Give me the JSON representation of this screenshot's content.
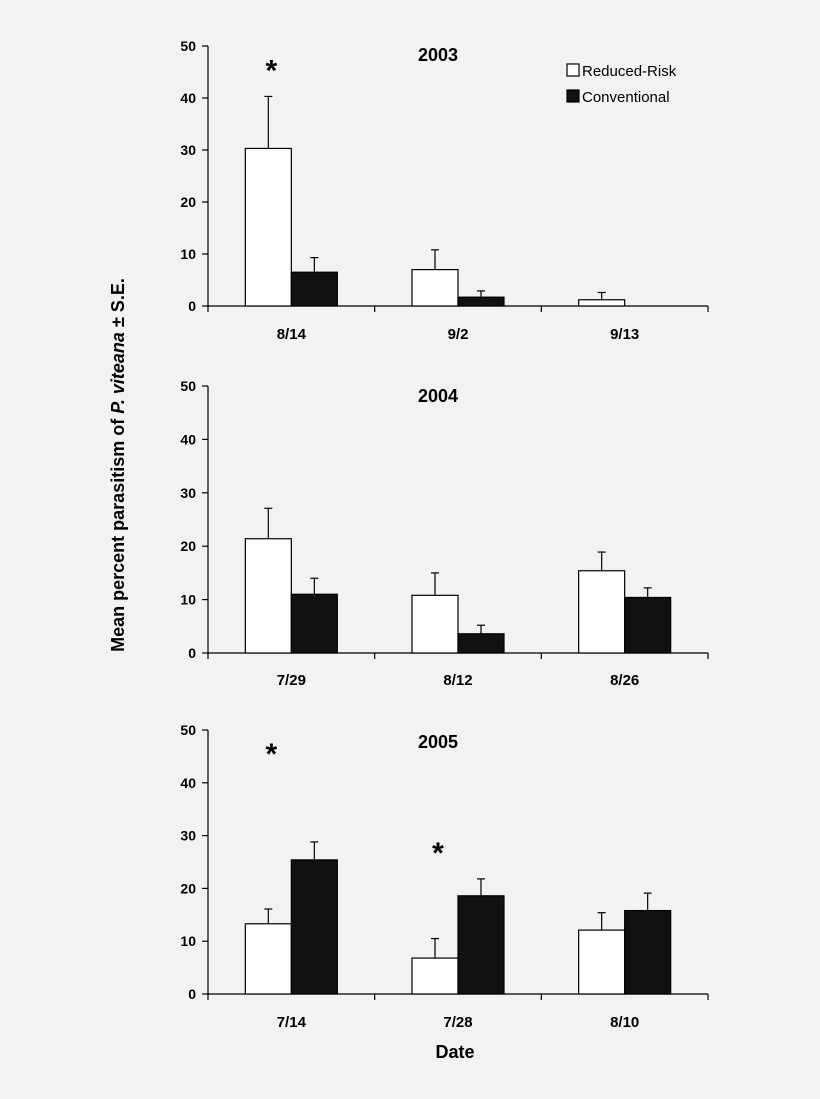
{
  "figure": {
    "ylabel_prefix": "Mean percent parasitism of ",
    "ylabel_italic": "P. viteana",
    "ylabel_suffix": " ± S.E.",
    "xlabel": "Date",
    "legend": [
      {
        "label": "Reduced-Risk",
        "color": "#ffffff"
      },
      {
        "label": "Conventional",
        "color": "#111111"
      }
    ],
    "colors": {
      "reduced_risk": "#ffffff",
      "conventional": "#111111",
      "background": "#f2f2f2"
    }
  },
  "chart_data": [
    {
      "type": "bar",
      "title": "2003",
      "categories": [
        "8/14",
        "9/2",
        "9/13"
      ],
      "ylim": [
        0,
        50
      ],
      "yticks": [
        0,
        10,
        20,
        30,
        40,
        50
      ],
      "series": [
        {
          "name": "Reduced-Risk",
          "values": [
            30.3,
            7.0,
            1.2
          ],
          "errors": [
            10.0,
            3.8,
            1.4
          ]
        },
        {
          "name": "Conventional",
          "values": [
            6.5,
            1.7,
            0
          ],
          "errors": [
            2.8,
            1.2,
            0
          ]
        }
      ],
      "significance": [
        {
          "category": "8/14",
          "label": "*"
        }
      ]
    },
    {
      "type": "bar",
      "title": "2004",
      "categories": [
        "7/29",
        "8/12",
        "8/26"
      ],
      "ylim": [
        0,
        50
      ],
      "yticks": [
        0,
        10,
        20,
        30,
        40,
        50
      ],
      "series": [
        {
          "name": "Reduced-Risk",
          "values": [
            21.4,
            10.8,
            15.4
          ],
          "errors": [
            5.7,
            4.2,
            3.5
          ]
        },
        {
          "name": "Conventional",
          "values": [
            11.0,
            3.6,
            10.4
          ],
          "errors": [
            3.0,
            1.6,
            1.8
          ]
        }
      ],
      "significance": []
    },
    {
      "type": "bar",
      "title": "2005",
      "categories": [
        "7/14",
        "7/28",
        "8/10"
      ],
      "ylim": [
        0,
        50
      ],
      "yticks": [
        0,
        10,
        20,
        30,
        40,
        50
      ],
      "series": [
        {
          "name": "Reduced-Risk",
          "values": [
            13.3,
            6.8,
            12.1
          ],
          "errors": [
            2.8,
            3.7,
            3.3
          ]
        },
        {
          "name": "Conventional",
          "values": [
            25.4,
            18.6,
            15.8
          ],
          "errors": [
            3.4,
            3.2,
            3.3
          ]
        }
      ],
      "significance": [
        {
          "category": "7/14",
          "label": "*"
        },
        {
          "category": "7/28",
          "label": "*"
        }
      ]
    }
  ]
}
